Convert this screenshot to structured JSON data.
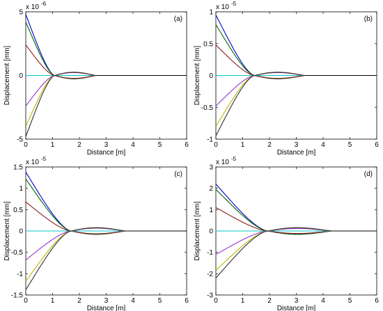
{
  "chart_data": [
    {
      "type": "line",
      "panel_label": "(a)",
      "xlabel": "Distance [m]",
      "ylabel": "Displacement [mm]",
      "exponent_label": "x 10",
      "exponent_power": "-6",
      "xlim": [
        0,
        6
      ],
      "ylim": [
        -5,
        5
      ],
      "xticks": [
        "0",
        "1",
        "2",
        "3",
        "4",
        "5",
        "6"
      ],
      "yticks": [
        "-5",
        "0",
        "5"
      ],
      "x0": 1.08,
      "xend": 2.6,
      "series": [
        {
          "color": "#0000cc",
          "start": 4.8
        },
        {
          "color": "#006400",
          "start": 4.2
        },
        {
          "color": "#8b1a1a",
          "start": 2.4
        },
        {
          "color": "#00c8c8",
          "start": 0.0
        },
        {
          "color": "#9932cc",
          "start": -2.4
        },
        {
          "color": "#b8b800",
          "start": -4.0
        },
        {
          "color": "#303030",
          "start": -4.8
        }
      ]
    },
    {
      "type": "line",
      "panel_label": "(b)",
      "xlabel": "Distance [m]",
      "ylabel": "Displacement [mm]",
      "exponent_label": "x 10",
      "exponent_power": "-5",
      "xlim": [
        0,
        6
      ],
      "ylim": [
        -1,
        1
      ],
      "xticks": [
        "0",
        "1",
        "2",
        "3",
        "4",
        "5",
        "6"
      ],
      "yticks": [
        "-1",
        "-0.5",
        "0",
        "0.5",
        "1"
      ],
      "x0": 1.45,
      "xend": 3.3,
      "series": [
        {
          "color": "#0000cc",
          "start": 0.95
        },
        {
          "color": "#006400",
          "start": 0.8
        },
        {
          "color": "#8b1a1a",
          "start": 0.48
        },
        {
          "color": "#00c8c8",
          "start": 0.0
        },
        {
          "color": "#9932cc",
          "start": -0.48
        },
        {
          "color": "#b8b800",
          "start": -0.8
        },
        {
          "color": "#303030",
          "start": -0.95
        }
      ]
    },
    {
      "type": "line",
      "panel_label": "(c)",
      "xlabel": "Distance [m]",
      "ylabel": "Displacement [mm]",
      "exponent_label": "x 10",
      "exponent_power": "-5",
      "xlim": [
        0,
        6
      ],
      "ylim": [
        -1.5,
        1.5
      ],
      "xticks": [
        "0",
        "1",
        "2",
        "3",
        "4",
        "5",
        "6"
      ],
      "yticks": [
        "-1.5",
        "-1",
        "-0.5",
        "0",
        "0.5",
        "1",
        "1.5"
      ],
      "x0": 1.7,
      "xend": 3.7,
      "series": [
        {
          "color": "#0000cc",
          "start": 1.38
        },
        {
          "color": "#006400",
          "start": 1.22
        },
        {
          "color": "#8b1a1a",
          "start": 0.68
        },
        {
          "color": "#00c8c8",
          "start": 0.0
        },
        {
          "color": "#9932cc",
          "start": -0.68
        },
        {
          "color": "#b8b800",
          "start": -1.18
        },
        {
          "color": "#303030",
          "start": -1.38
        }
      ]
    },
    {
      "type": "line",
      "panel_label": "(d)",
      "xlabel": "Distance [m]",
      "ylabel": "Displacement [mm]",
      "exponent_label": "x 10",
      "exponent_power": "-5",
      "xlim": [
        0,
        6
      ],
      "ylim": [
        -3,
        3
      ],
      "xticks": [
        "0",
        "1",
        "2",
        "3",
        "4",
        "5",
        "6"
      ],
      "yticks": [
        "-3",
        "-2",
        "-1",
        "0",
        "1",
        "2",
        "3"
      ],
      "x0": 1.95,
      "xend": 4.3,
      "series": [
        {
          "color": "#0000cc",
          "start": 2.2
        },
        {
          "color": "#006400",
          "start": 1.95
        },
        {
          "color": "#8b1a1a",
          "start": 1.1
        },
        {
          "color": "#00c8c8",
          "start": 0.0
        },
        {
          "color": "#9932cc",
          "start": -1.1
        },
        {
          "color": "#b8b800",
          "start": -1.85
        },
        {
          "color": "#303030",
          "start": -2.2
        }
      ]
    }
  ]
}
